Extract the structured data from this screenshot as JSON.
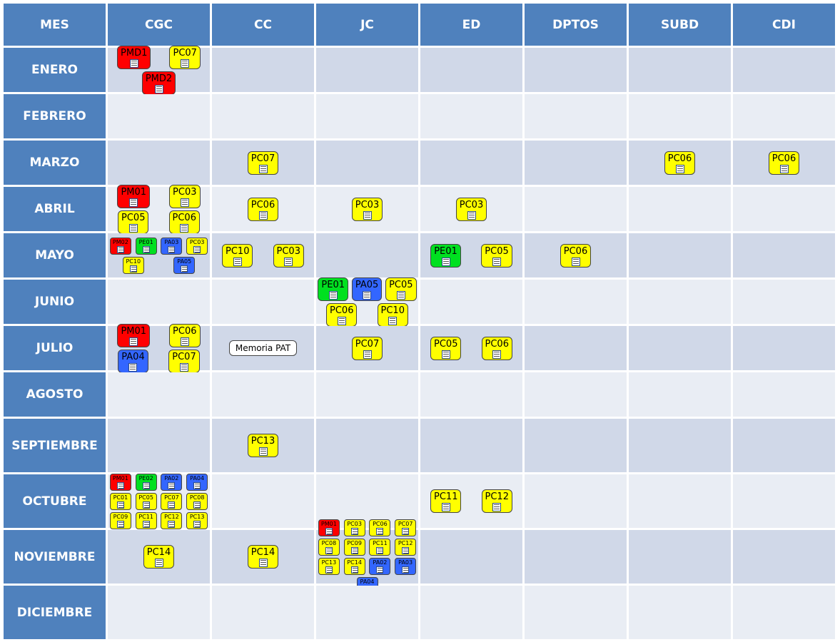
{
  "header": [
    "MES",
    "CGC",
    "CC",
    "JC",
    "ED",
    "DPTOS",
    "SUBD",
    "CDI"
  ],
  "rows": [
    {
      "month": "ENERO",
      "cells": [
        [
          {
            "label": "PMD1",
            "color": "red"
          },
          {
            "label": "PC07",
            "color": "yellow"
          },
          {
            "label": "PMD2",
            "color": "red"
          }
        ],
        [],
        [],
        [],
        [],
        [],
        []
      ]
    },
    {
      "month": "FEBRERO",
      "cells": [
        [],
        [],
        [],
        [],
        [],
        [],
        []
      ]
    },
    {
      "month": "MARZO",
      "cells": [
        [],
        [
          {
            "label": "PC07",
            "color": "yellow"
          }
        ],
        [],
        [],
        [],
        [
          {
            "label": "PC06",
            "color": "yellow"
          }
        ],
        [
          {
            "label": "PC06",
            "color": "yellow"
          }
        ]
      ]
    },
    {
      "month": "ABRIL",
      "cells": [
        [
          {
            "label": "PM01",
            "color": "red"
          },
          {
            "label": "PC03",
            "color": "yellow"
          },
          {
            "label": "PC05",
            "color": "yellow"
          },
          {
            "label": "PC06",
            "color": "yellow"
          }
        ],
        [
          {
            "label": "PC06",
            "color": "yellow"
          }
        ],
        [
          {
            "label": "PC03",
            "color": "yellow"
          }
        ],
        [
          {
            "label": "PC03",
            "color": "yellow"
          }
        ],
        [],
        [],
        []
      ]
    },
    {
      "month": "MAYO",
      "cells": [
        [
          {
            "label": "PM02",
            "color": "red"
          },
          {
            "label": "PE01",
            "color": "green"
          },
          {
            "label": "PA03",
            "color": "blue"
          },
          {
            "label": "PC03",
            "color": "yellow"
          },
          {
            "label": "PC10",
            "color": "yellow"
          },
          {
            "label": "PA05",
            "color": "blue"
          }
        ],
        [
          {
            "label": "PC10",
            "color": "yellow"
          },
          {
            "label": "PC03",
            "color": "yellow"
          }
        ],
        [],
        [
          {
            "label": "PE01",
            "color": "green"
          },
          {
            "label": "PC05",
            "color": "yellow"
          }
        ],
        [
          {
            "label": "PC06",
            "color": "yellow"
          }
        ],
        [],
        []
      ]
    },
    {
      "month": "JUNIO",
      "cells": [
        [],
        [],
        [
          {
            "label": "PE01",
            "color": "green"
          },
          {
            "label": "PA05",
            "color": "blue"
          },
          {
            "label": "PC05",
            "color": "yellow"
          },
          {
            "label": "PC06",
            "color": "yellow"
          },
          {
            "label": "PC10",
            "color": "yellow"
          }
        ],
        [],
        [],
        [],
        []
      ]
    },
    {
      "month": "JULIO",
      "cells": [
        [
          {
            "label": "PM01",
            "color": "red"
          },
          {
            "label": "PC06",
            "color": "yellow"
          },
          {
            "label": "PA04",
            "color": "blue"
          },
          {
            "label": "PC07",
            "color": "yellow"
          }
        ],
        [
          {
            "label": "Memoria PAT",
            "color": "white"
          }
        ],
        [
          {
            "label": "PC07",
            "color": "yellow"
          }
        ],
        [
          {
            "label": "PC05",
            "color": "yellow"
          },
          {
            "label": "PC06",
            "color": "yellow"
          }
        ],
        [],
        [],
        []
      ]
    },
    {
      "month": "AGOSTO",
      "cells": [
        [],
        [],
        [],
        [],
        [],
        [],
        []
      ]
    },
    {
      "month": "SEPTIEMBRE",
      "cells": [
        [],
        [
          {
            "label": "PC13",
            "color": "yellow"
          }
        ],
        [],
        [],
        [],
        [],
        []
      ]
    },
    {
      "month": "OCTUBRE",
      "cells": [
        [
          {
            "label": "PM01",
            "color": "red"
          },
          {
            "label": "PE02",
            "color": "green"
          },
          {
            "label": "PA02",
            "color": "blue"
          },
          {
            "label": "PA04",
            "color": "blue"
          },
          {
            "label": "PC01",
            "color": "yellow"
          },
          {
            "label": "PC05",
            "color": "yellow"
          },
          {
            "label": "PC07",
            "color": "yellow"
          },
          {
            "label": "PC08",
            "color": "yellow"
          },
          {
            "label": "PC09",
            "color": "yellow"
          },
          {
            "label": "PC11",
            "color": "yellow"
          },
          {
            "label": "PC12",
            "color": "yellow"
          },
          {
            "label": "PC13",
            "color": "yellow"
          }
        ],
        [],
        [],
        [
          {
            "label": "PC11",
            "color": "yellow"
          },
          {
            "label": "PC12",
            "color": "yellow"
          }
        ],
        [],
        [],
        []
      ]
    },
    {
      "month": "NOVIEMBRE",
      "cells": [
        [
          {
            "label": "PC14",
            "color": "yellow"
          }
        ],
        [
          {
            "label": "PC14",
            "color": "yellow"
          }
        ],
        [
          {
            "label": "PM01",
            "color": "red"
          },
          {
            "label": "PC03",
            "color": "yellow"
          },
          {
            "label": "PC06",
            "color": "yellow"
          },
          {
            "label": "PC07",
            "color": "yellow"
          },
          {
            "label": "PC08",
            "color": "yellow"
          },
          {
            "label": "PC09",
            "color": "yellow"
          },
          {
            "label": "PC11",
            "color": "yellow"
          },
          {
            "label": "PC12",
            "color": "yellow"
          },
          {
            "label": "PC13",
            "color": "yellow"
          },
          {
            "label": "PC14",
            "color": "yellow"
          },
          {
            "label": "PA02",
            "color": "blue"
          },
          {
            "label": "PA03",
            "color": "blue"
          },
          {
            "label": "PA04",
            "color": "blue"
          }
        ],
        [],
        [],
        [],
        []
      ]
    },
    {
      "month": "DICIEMBRE",
      "cells": [
        [],
        [],
        [],
        [],
        [],
        [],
        []
      ]
    }
  ]
}
